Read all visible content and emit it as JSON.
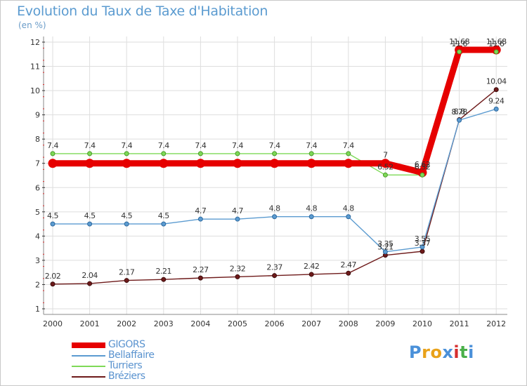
{
  "chart_data": {
    "type": "line",
    "title": "Evolution du Taux de Taxe d'Habitation",
    "subtitle": "(en %)",
    "categories": [
      "2000",
      "2001",
      "2002",
      "2003",
      "2004",
      "2005",
      "2006",
      "2007",
      "2008",
      "2009",
      "2010",
      "2011",
      "2012"
    ],
    "ylim": [
      1,
      12
    ],
    "yticks": [
      "1",
      "2",
      "3",
      "4",
      "5",
      "6",
      "7",
      "8",
      "9",
      "10",
      "11",
      "12"
    ],
    "series": [
      {
        "name": "GIGORS",
        "color": "#e60000",
        "values": [
          7,
          7,
          7,
          7,
          7,
          7,
          7,
          7,
          7,
          7,
          6.62,
          11.68,
          11.68
        ],
        "labels": [
          "",
          "",
          "",
          "",
          "",
          "",
          "",
          "",
          "",
          "7",
          "6.62",
          "11.68",
          "11.68"
        ]
      },
      {
        "name": "Bellaffaire",
        "color": "#5b9bd0",
        "values": [
          4.5,
          4.5,
          4.5,
          4.5,
          4.7,
          4.7,
          4.8,
          4.8,
          4.8,
          3.35,
          3.55,
          8.78,
          9.24
        ],
        "labels": [
          "4.5",
          "4.5",
          "4.5",
          "4.5",
          "4.7",
          "4.7",
          "4.8",
          "4.8",
          "4.8",
          "3.35",
          "3.55",
          "8.78",
          "9.24"
        ]
      },
      {
        "name": "Turriers",
        "color": "#7ed957",
        "values": [
          7.4,
          7.4,
          7.4,
          7.4,
          7.4,
          7.4,
          7.4,
          7.4,
          7.4,
          6.52,
          6.52,
          11.6,
          11.6
        ],
        "labels": [
          "7.4",
          "7.4",
          "7.4",
          "7.4",
          "7.4",
          "7.4",
          "7.4",
          "7.4",
          "7.4",
          "6.52",
          "6.52",
          "11.6",
          "11.6"
        ]
      },
      {
        "name": "Bréziers",
        "color": "#6e1a1a",
        "values": [
          2.02,
          2.04,
          2.17,
          2.21,
          2.27,
          2.32,
          2.37,
          2.42,
          2.47,
          3.21,
          3.37,
          8.8,
          10.04
        ],
        "labels": [
          "2.02",
          "2.04",
          "2.17",
          "2.21",
          "2.27",
          "2.32",
          "2.37",
          "2.42",
          "2.47",
          "3.21",
          "3.37",
          "8.8",
          "10.04"
        ]
      }
    ]
  },
  "legend": {
    "items": [
      {
        "label": "GIGORS",
        "color": "#e60000"
      },
      {
        "label": "Bellaffaire",
        "color": "#5b9bd0"
      },
      {
        "label": "Turriers",
        "color": "#7ed957"
      },
      {
        "label": "Bréziers",
        "color": "#6e1a1a"
      }
    ]
  },
  "logo": {
    "letters": [
      "P",
      "r",
      "o",
      "x",
      "i",
      "t",
      "i"
    ],
    "colors": [
      "#4a90d9",
      "#e9a21a",
      "#e9a21a",
      "#4a90d9",
      "#d62e2e",
      "#4ab04a",
      "#4a90d9"
    ]
  }
}
